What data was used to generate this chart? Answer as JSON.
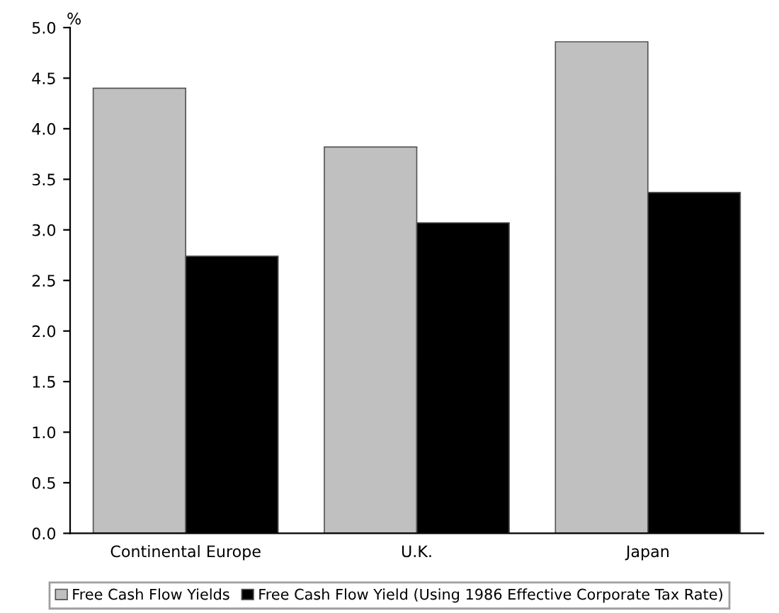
{
  "chart_data": {
    "type": "bar",
    "ylabel": "%",
    "categories": [
      "Continental Europe",
      "U.K.",
      "Japan"
    ],
    "series": [
      {
        "name": "Free Cash Flow Yields",
        "color": "#c0c0c0",
        "values": [
          4.4,
          3.82,
          4.86
        ]
      },
      {
        "name": "Free Cash Flow Yield (Using 1986 Effective Corporate Tax Rate)",
        "color": "#000000",
        "values": [
          2.74,
          3.07,
          3.37
        ]
      }
    ],
    "ylim": [
      0,
      5
    ],
    "yticks": [
      {
        "value": 0,
        "label": "0.0"
      },
      {
        "value": 0.5,
        "label": "0.5"
      },
      {
        "value": 1,
        "label": "1.0"
      },
      {
        "value": 1.5,
        "label": "1.5"
      },
      {
        "value": 2,
        "label": "2.0"
      },
      {
        "value": 2.5,
        "label": "2.5"
      },
      {
        "value": 3,
        "label": "3.0"
      },
      {
        "value": 3.5,
        "label": "3.5"
      },
      {
        "value": 4,
        "label": "4.0"
      },
      {
        "value": 4.5,
        "label": "4.5"
      },
      {
        "value": 5,
        "label": "5.0"
      }
    ],
    "grid": false,
    "legend": "bottom"
  }
}
